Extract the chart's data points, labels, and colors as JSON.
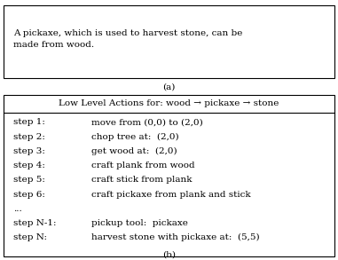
{
  "fig_width": 3.81,
  "fig_height": 2.93,
  "bg_color": "#ffffff",
  "box_color": "#000000",
  "text_color": "#000000",
  "top_text": "A pickaxe, which is used to harvest stone, can be\nmade from wood.",
  "label_a": "(a)",
  "header_text": "Low Level Actions for: wood → pickaxe → stone",
  "label_b": "(b)",
  "steps": [
    [
      "step 1:",
      "move from (0,0) to (2,0)"
    ],
    [
      "step 2:",
      "chop tree at:  (2,0)"
    ],
    [
      "step 3:",
      "get wood at:  (2,0)"
    ],
    [
      "step 4:",
      "craft plank from wood"
    ],
    [
      "step 5:",
      "craft stick from plank"
    ],
    [
      "step 6:",
      "craft pickaxe from plank and stick"
    ],
    [
      "...",
      ""
    ],
    [
      "step N-1:",
      "pickup tool:  pickaxe"
    ],
    [
      "step N:",
      "harvest stone with pickaxe at:  (5,5)"
    ]
  ],
  "font_size": 7.5,
  "header_font_size": 7.5
}
